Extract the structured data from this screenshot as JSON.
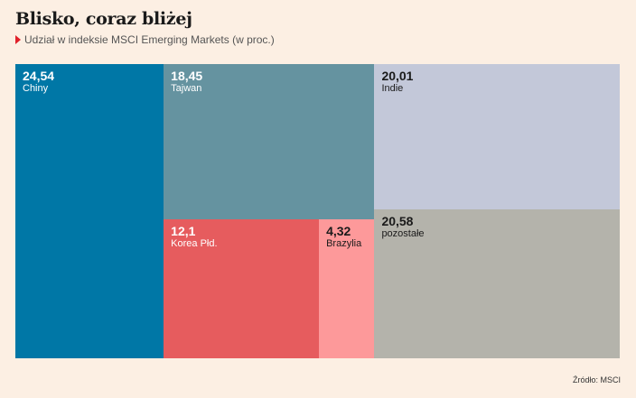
{
  "header": {
    "title": "Blisko, coraz bliżej",
    "subtitle": "Udział w indeksie MSCI Emerging Markets (w proc.)"
  },
  "source": "Źródło: MSCI",
  "chart_data": {
    "type": "treemap",
    "title": "Blisko, coraz bliżej",
    "subtitle": "Udział w indeksie MSCI Emerging Markets (w proc.)",
    "unit": "%",
    "items": [
      {
        "name": "Chiny",
        "value": 24.54,
        "value_label": "24,54",
        "color": "#0077a6",
        "text_color": "#ffffff"
      },
      {
        "name": "Tajwan",
        "value": 18.45,
        "value_label": "18,45",
        "color": "#6593a0",
        "text_color": "#ffffff"
      },
      {
        "name": "Korea Płd.",
        "value": 12.1,
        "value_label": "12,1",
        "color": "#e65c5e",
        "text_color": "#ffffff"
      },
      {
        "name": "Brazylia",
        "value": 4.32,
        "value_label": "4,32",
        "color": "#fd999a",
        "text_color": "#1a1a1a"
      },
      {
        "name": "Indie",
        "value": 20.01,
        "value_label": "20,01",
        "color": "#c3c8d9",
        "text_color": "#1a1a1a"
      },
      {
        "name": "pozostałe",
        "value": 20.58,
        "value_label": "20,58",
        "color": "#b4b3ab",
        "text_color": "#1a1a1a"
      }
    ]
  }
}
